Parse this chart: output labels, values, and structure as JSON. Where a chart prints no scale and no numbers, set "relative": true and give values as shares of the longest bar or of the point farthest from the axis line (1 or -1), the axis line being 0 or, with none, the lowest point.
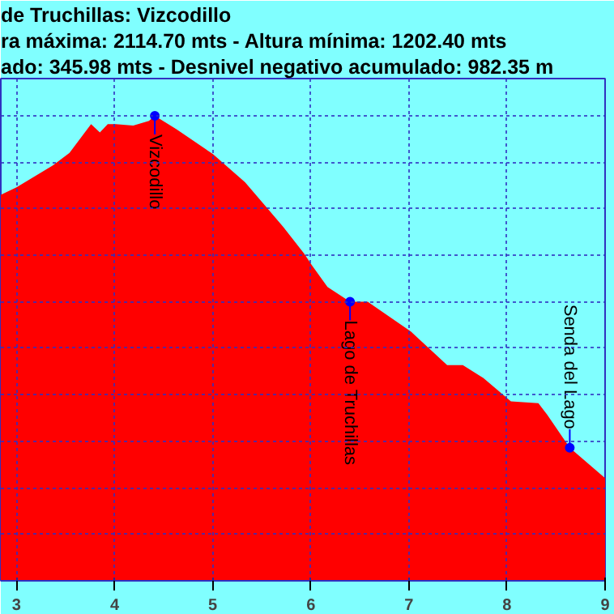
{
  "chart_data": {
    "type": "area",
    "title": "de Truchillas:  Vizcodillo",
    "subtitle": "ra máxima: 2114.70 mts - Altura mínima: 1202.40 mts",
    "relative": true,
    "x": [
      2.84,
      3.0,
      3.37,
      3.54,
      3.76,
      3.85,
      3.93,
      4.01,
      4.19,
      4.35,
      4.41,
      4.63,
      5.0,
      5.33,
      5.72,
      5.93,
      6.01,
      6.17,
      6.4,
      6.58,
      7.02,
      7.39,
      7.55,
      7.76,
      8.04,
      8.32,
      8.41,
      8.64,
      9.0
    ],
    "values": [
      0.83,
      0.846,
      0.893,
      0.92,
      0.982,
      0.964,
      0.982,
      0.982,
      0.979,
      0.989,
      1.0,
      0.971,
      0.918,
      0.857,
      0.761,
      0.704,
      0.679,
      0.632,
      0.6,
      0.6,
      0.536,
      0.464,
      0.464,
      0.436,
      0.386,
      0.382,
      0.357,
      0.286,
      0.221
    ],
    "color": "#ff0000",
    "xlim": [
      2.84,
      9.0
    ],
    "xticks": [
      3,
      4,
      5,
      6,
      7,
      8,
      9
    ],
    "grid": true,
    "annotations": [
      "ado: 345.98 mts - Desnivel negativo acumulado: 982.35 m",
      {
        "text": "Vizcodillo",
        "x": 4.41,
        "y": 1.0
      },
      {
        "text": "Lago de Truchillas",
        "x": 6.4,
        "y": 0.6
      },
      {
        "text": "Senda del Lago",
        "x": 8.64,
        "y": 0.286
      }
    ]
  }
}
